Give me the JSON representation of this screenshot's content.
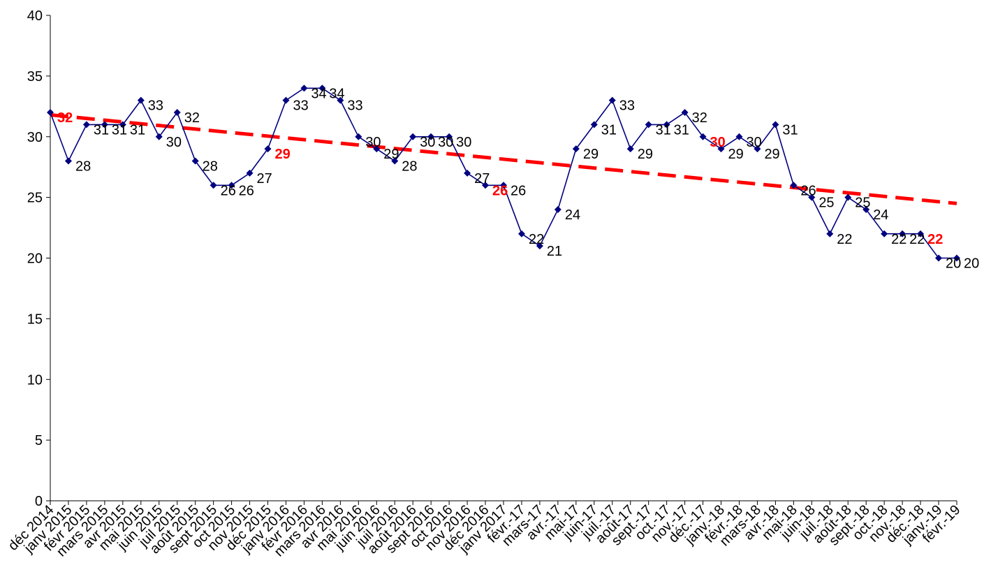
{
  "chart_data": {
    "type": "line",
    "title": "",
    "xlabel": "",
    "ylabel": "",
    "ylim": [
      0,
      40
    ],
    "yticks": [
      0,
      5,
      10,
      15,
      20,
      25,
      30,
      35,
      40
    ],
    "grid": false,
    "legend": "none",
    "categories": [
      "déc 2014",
      "janv 2015",
      "févr 2015",
      "mars 2015",
      "avr 2015",
      "mai 2015",
      "juin 2015",
      "juil 2015",
      "août 2015",
      "sept 2015",
      "oct 2015",
      "nov 2015",
      "déc 2015",
      "janv 2016",
      "févr 2016",
      "mars 2016",
      "avr 2016",
      "mai 2016",
      "juin 2016",
      "juil 2016",
      "août 2016",
      "sept 2016",
      "oct 2016",
      "nov 2016",
      "déc 2016",
      "janv 2017",
      "févr.-17",
      "mars-17",
      "avr.-17",
      "mai-17",
      "juin-17",
      "juil.-17",
      "août-17",
      "sept.-17",
      "oct.-17",
      "nov.-17",
      "déc.-17",
      "janv.-18",
      "févr.-18",
      "mars-18",
      "avr.-18",
      "mai-18",
      "juin-18",
      "juil.-18",
      "août-18",
      "sept.-18",
      "oct.-18",
      "nov.-18",
      "déc.-18",
      "janv.-19",
      "févr.-19"
    ],
    "series": [
      {
        "values": [
          32,
          28,
          31,
          31,
          31,
          33,
          30,
          32,
          28,
          26,
          26,
          27,
          29,
          33,
          34,
          34,
          33,
          30,
          29,
          28,
          30,
          30,
          30,
          27,
          26,
          26,
          22,
          21,
          24,
          29,
          31,
          33,
          29,
          31,
          31,
          32,
          30,
          29,
          30,
          29,
          31,
          26,
          25,
          22,
          25,
          24,
          22,
          22,
          22,
          20,
          20
        ],
        "color": "#000080",
        "marker": "diamond",
        "highlighted_labels": [
          0,
          12,
          24,
          36,
          48
        ],
        "highlight_color": "#ff0000"
      }
    ],
    "trendline": {
      "type": "linear",
      "start_value": 31.8,
      "end_value": 24.5,
      "color": "#ff0000",
      "style": "dashed"
    }
  }
}
